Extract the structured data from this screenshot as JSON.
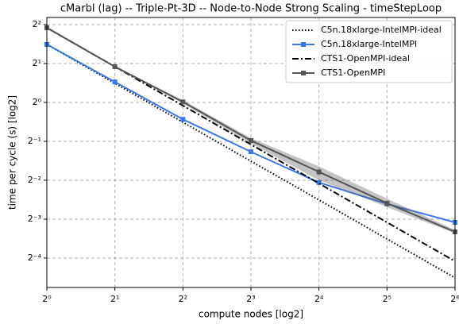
{
  "chart_data": {
    "type": "line",
    "title": "cMarbl (lag) -- Triple-Pt-3D -- Node-to-Node Strong Scaling - timeStepLoop",
    "x_label": "compute nodes [log2]",
    "y_label": "time per cycle (s) [log2]",
    "x": [
      1,
      2,
      4,
      8,
      16,
      32,
      64
    ],
    "series": [
      {
        "name": "C5n.18xlarge-IntelMPI-ideal",
        "color": "#000000",
        "linestyle": "dotted",
        "marker": "none",
        "values": [
          2.81,
          1.405,
          0.7025,
          0.351,
          0.176,
          0.0878,
          0.0439
        ]
      },
      {
        "name": "C5n.18xlarge-IntelMPI",
        "color": "#3b78e7",
        "linestyle": "solid",
        "marker": "square",
        "values": [
          2.81,
          1.44,
          0.74,
          0.415,
          0.24,
          0.164,
          0.118
        ]
      },
      {
        "name": "CTS1-OpenMPI-ideal",
        "color": "#000000",
        "linestyle": "dashdot",
        "marker": "none",
        "values": [
          3.78,
          1.89,
          0.945,
          0.4725,
          0.236,
          0.118,
          0.059
        ]
      },
      {
        "name": "CTS1-OpenMPI",
        "color": "#555555",
        "linestyle": "solid",
        "marker": "square",
        "values": [
          3.78,
          1.89,
          1.01,
          0.507,
          0.29,
          0.166,
          0.0996
        ],
        "lower": [
          3.78,
          1.89,
          0.98,
          0.48,
          0.25,
          0.155,
          0.097
        ],
        "upper": [
          3.78,
          1.89,
          1.04,
          0.53,
          0.32,
          0.18,
          0.103
        ]
      }
    ],
    "xscale": "log2",
    "yscale": "log2",
    "xlim": [
      1,
      64
    ],
    "ylim": [
      0.037,
      4.54
    ],
    "xticks": [
      {
        "value": 1,
        "label": "2⁰"
      },
      {
        "value": 2,
        "label": "2¹"
      },
      {
        "value": 4,
        "label": "2²"
      },
      {
        "value": 8,
        "label": "2³"
      },
      {
        "value": 16,
        "label": "2⁴"
      },
      {
        "value": 32,
        "label": "2⁵"
      },
      {
        "value": 64,
        "label": "2⁶"
      }
    ],
    "yticks": [
      {
        "value": 0.0625,
        "label": "2⁻⁴"
      },
      {
        "value": 0.125,
        "label": "2⁻³"
      },
      {
        "value": 0.25,
        "label": "2⁻²"
      },
      {
        "value": 0.5,
        "label": "2⁻¹"
      },
      {
        "value": 1,
        "label": "2⁰"
      },
      {
        "value": 2,
        "label": "2¹"
      },
      {
        "value": 4,
        "label": "2²"
      }
    ],
    "grid": true,
    "legend": "upper right"
  }
}
